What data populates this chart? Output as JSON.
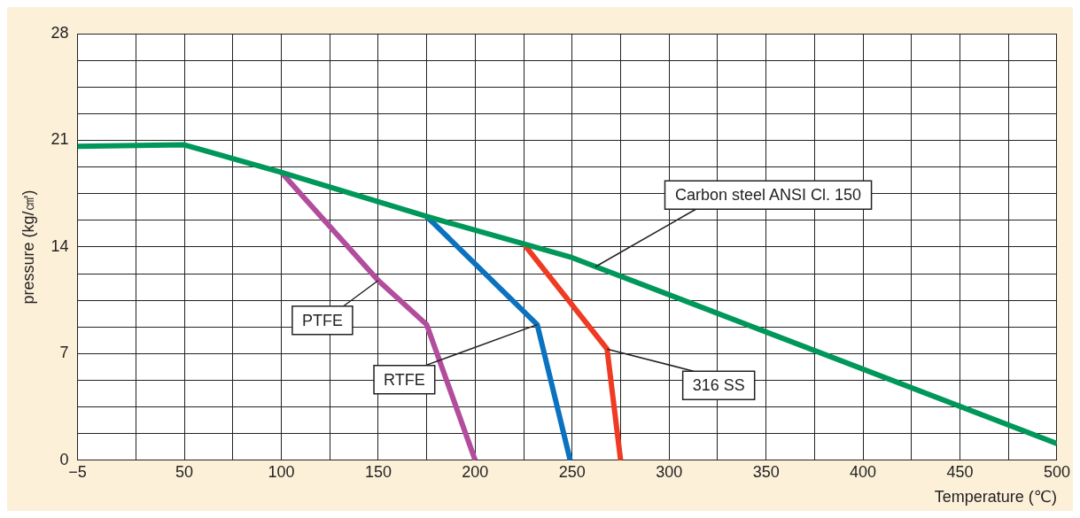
{
  "chart_data": {
    "type": "line",
    "xlabel": "Temperature (℃)",
    "ylabel": "pressure (kg/㎠)",
    "xlim": [
      -5,
      500
    ],
    "xticks": [
      -5,
      {
        "value": 25,
        "label": null
      },
      50,
      {
        "value": 75,
        "label": null
      },
      100,
      {
        "value": 125,
        "label": null
      },
      150,
      {
        "value": 175,
        "label": null
      },
      200,
      {
        "value": 225,
        "label": null
      },
      250,
      {
        "value": 275,
        "label": null
      },
      300,
      {
        "value": 325,
        "label": null
      },
      350,
      {
        "value": 375,
        "label": null
      },
      400,
      {
        "value": 425,
        "label": null
      },
      450,
      {
        "value": 475,
        "label": null
      },
      500
    ],
    "ylim": [
      0,
      28
    ],
    "yticks": [
      0,
      {
        "value": 1.75,
        "label": null
      },
      {
        "value": 3.5,
        "label": null
      },
      {
        "value": 5.25,
        "label": null
      },
      7,
      {
        "value": 8.75,
        "label": null
      },
      {
        "value": 10.5,
        "label": null
      },
      {
        "value": 12.25,
        "label": null
      },
      14,
      {
        "value": 15.75,
        "label": null
      },
      {
        "value": 17.5,
        "label": null
      },
      {
        "value": 19.25,
        "label": null
      },
      21,
      {
        "value": 22.75,
        "label": null
      },
      {
        "value": 24.5,
        "label": null
      },
      {
        "value": 26.25,
        "label": null
      },
      28
    ],
    "grid": true,
    "legend": false,
    "marker": "none",
    "line_style": "solid",
    "series": [
      {
        "color": "#00975a",
        "x": [
          -5,
          50,
          100,
          175,
          225,
          250,
          500
        ],
        "values": [
          20.6,
          20.7,
          18.9,
          16.0,
          14.2,
          13.3,
          1.1
        ]
      },
      {
        "color": "#b24d9d",
        "x": [
          100,
          150,
          175,
          200
        ],
        "values": [
          18.9,
          11.8,
          8.9,
          0
        ]
      },
      {
        "color": "#0b72c0",
        "x": [
          175,
          232,
          249
        ],
        "values": [
          16.0,
          8.9,
          0
        ]
      },
      {
        "color": "#ef3b24",
        "x": [
          225,
          268,
          275
        ],
        "values": [
          14.2,
          7.3,
          0
        ]
      }
    ],
    "annotations": [
      {
        "text": "Carbon steel ANSI Cl. 150",
        "x": 262,
        "y": 12.7
      },
      {
        "text": "PTFE",
        "x": 150,
        "y": 11.8
      },
      {
        "text": "RTFE",
        "x": 232,
        "y": 8.9
      },
      {
        "text": "316 SS",
        "x": 268,
        "y": 7.3
      }
    ]
  }
}
